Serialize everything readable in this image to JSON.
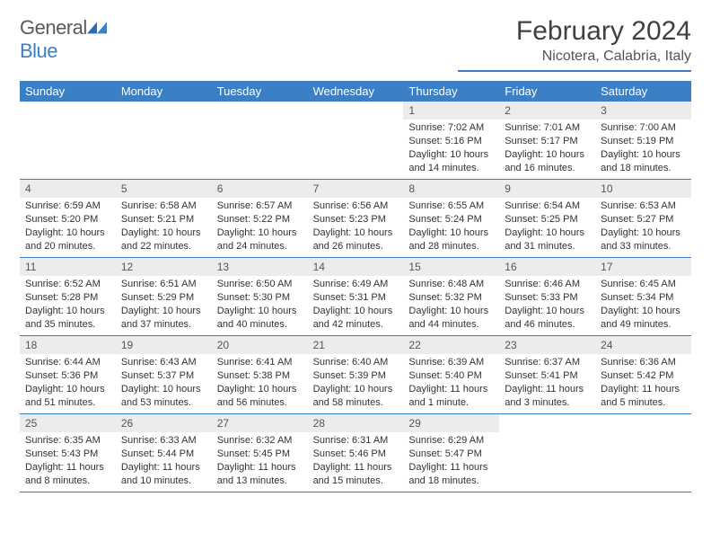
{
  "logo": {
    "text1": "General",
    "text2": "Blue"
  },
  "title": "February 2024",
  "location": "Nicotera, Calabria, Italy",
  "colors": {
    "header_bg": "#3b7fc4",
    "daynum_bg": "#ececec",
    "text": "#333333",
    "background": "#ffffff"
  },
  "day_names": [
    "Sunday",
    "Monday",
    "Tuesday",
    "Wednesday",
    "Thursday",
    "Friday",
    "Saturday"
  ],
  "weeks": [
    [
      {
        "n": "",
        "sr": "",
        "ss": "",
        "dl": ""
      },
      {
        "n": "",
        "sr": "",
        "ss": "",
        "dl": ""
      },
      {
        "n": "",
        "sr": "",
        "ss": "",
        "dl": ""
      },
      {
        "n": "",
        "sr": "",
        "ss": "",
        "dl": ""
      },
      {
        "n": "1",
        "sr": "Sunrise: 7:02 AM",
        "ss": "Sunset: 5:16 PM",
        "dl": "Daylight: 10 hours and 14 minutes."
      },
      {
        "n": "2",
        "sr": "Sunrise: 7:01 AM",
        "ss": "Sunset: 5:17 PM",
        "dl": "Daylight: 10 hours and 16 minutes."
      },
      {
        "n": "3",
        "sr": "Sunrise: 7:00 AM",
        "ss": "Sunset: 5:19 PM",
        "dl": "Daylight: 10 hours and 18 minutes."
      }
    ],
    [
      {
        "n": "4",
        "sr": "Sunrise: 6:59 AM",
        "ss": "Sunset: 5:20 PM",
        "dl": "Daylight: 10 hours and 20 minutes."
      },
      {
        "n": "5",
        "sr": "Sunrise: 6:58 AM",
        "ss": "Sunset: 5:21 PM",
        "dl": "Daylight: 10 hours and 22 minutes."
      },
      {
        "n": "6",
        "sr": "Sunrise: 6:57 AM",
        "ss": "Sunset: 5:22 PM",
        "dl": "Daylight: 10 hours and 24 minutes."
      },
      {
        "n": "7",
        "sr": "Sunrise: 6:56 AM",
        "ss": "Sunset: 5:23 PM",
        "dl": "Daylight: 10 hours and 26 minutes."
      },
      {
        "n": "8",
        "sr": "Sunrise: 6:55 AM",
        "ss": "Sunset: 5:24 PM",
        "dl": "Daylight: 10 hours and 28 minutes."
      },
      {
        "n": "9",
        "sr": "Sunrise: 6:54 AM",
        "ss": "Sunset: 5:25 PM",
        "dl": "Daylight: 10 hours and 31 minutes."
      },
      {
        "n": "10",
        "sr": "Sunrise: 6:53 AM",
        "ss": "Sunset: 5:27 PM",
        "dl": "Daylight: 10 hours and 33 minutes."
      }
    ],
    [
      {
        "n": "11",
        "sr": "Sunrise: 6:52 AM",
        "ss": "Sunset: 5:28 PM",
        "dl": "Daylight: 10 hours and 35 minutes."
      },
      {
        "n": "12",
        "sr": "Sunrise: 6:51 AM",
        "ss": "Sunset: 5:29 PM",
        "dl": "Daylight: 10 hours and 37 minutes."
      },
      {
        "n": "13",
        "sr": "Sunrise: 6:50 AM",
        "ss": "Sunset: 5:30 PM",
        "dl": "Daylight: 10 hours and 40 minutes."
      },
      {
        "n": "14",
        "sr": "Sunrise: 6:49 AM",
        "ss": "Sunset: 5:31 PM",
        "dl": "Daylight: 10 hours and 42 minutes."
      },
      {
        "n": "15",
        "sr": "Sunrise: 6:48 AM",
        "ss": "Sunset: 5:32 PM",
        "dl": "Daylight: 10 hours and 44 minutes."
      },
      {
        "n": "16",
        "sr": "Sunrise: 6:46 AM",
        "ss": "Sunset: 5:33 PM",
        "dl": "Daylight: 10 hours and 46 minutes."
      },
      {
        "n": "17",
        "sr": "Sunrise: 6:45 AM",
        "ss": "Sunset: 5:34 PM",
        "dl": "Daylight: 10 hours and 49 minutes."
      }
    ],
    [
      {
        "n": "18",
        "sr": "Sunrise: 6:44 AM",
        "ss": "Sunset: 5:36 PM",
        "dl": "Daylight: 10 hours and 51 minutes."
      },
      {
        "n": "19",
        "sr": "Sunrise: 6:43 AM",
        "ss": "Sunset: 5:37 PM",
        "dl": "Daylight: 10 hours and 53 minutes."
      },
      {
        "n": "20",
        "sr": "Sunrise: 6:41 AM",
        "ss": "Sunset: 5:38 PM",
        "dl": "Daylight: 10 hours and 56 minutes."
      },
      {
        "n": "21",
        "sr": "Sunrise: 6:40 AM",
        "ss": "Sunset: 5:39 PM",
        "dl": "Daylight: 10 hours and 58 minutes."
      },
      {
        "n": "22",
        "sr": "Sunrise: 6:39 AM",
        "ss": "Sunset: 5:40 PM",
        "dl": "Daylight: 11 hours and 1 minute."
      },
      {
        "n": "23",
        "sr": "Sunrise: 6:37 AM",
        "ss": "Sunset: 5:41 PM",
        "dl": "Daylight: 11 hours and 3 minutes."
      },
      {
        "n": "24",
        "sr": "Sunrise: 6:36 AM",
        "ss": "Sunset: 5:42 PM",
        "dl": "Daylight: 11 hours and 5 minutes."
      }
    ],
    [
      {
        "n": "25",
        "sr": "Sunrise: 6:35 AM",
        "ss": "Sunset: 5:43 PM",
        "dl": "Daylight: 11 hours and 8 minutes."
      },
      {
        "n": "26",
        "sr": "Sunrise: 6:33 AM",
        "ss": "Sunset: 5:44 PM",
        "dl": "Daylight: 11 hours and 10 minutes."
      },
      {
        "n": "27",
        "sr": "Sunrise: 6:32 AM",
        "ss": "Sunset: 5:45 PM",
        "dl": "Daylight: 11 hours and 13 minutes."
      },
      {
        "n": "28",
        "sr": "Sunrise: 6:31 AM",
        "ss": "Sunset: 5:46 PM",
        "dl": "Daylight: 11 hours and 15 minutes."
      },
      {
        "n": "29",
        "sr": "Sunrise: 6:29 AM",
        "ss": "Sunset: 5:47 PM",
        "dl": "Daylight: 11 hours and 18 minutes."
      },
      {
        "n": "",
        "sr": "",
        "ss": "",
        "dl": ""
      },
      {
        "n": "",
        "sr": "",
        "ss": "",
        "dl": ""
      }
    ]
  ]
}
